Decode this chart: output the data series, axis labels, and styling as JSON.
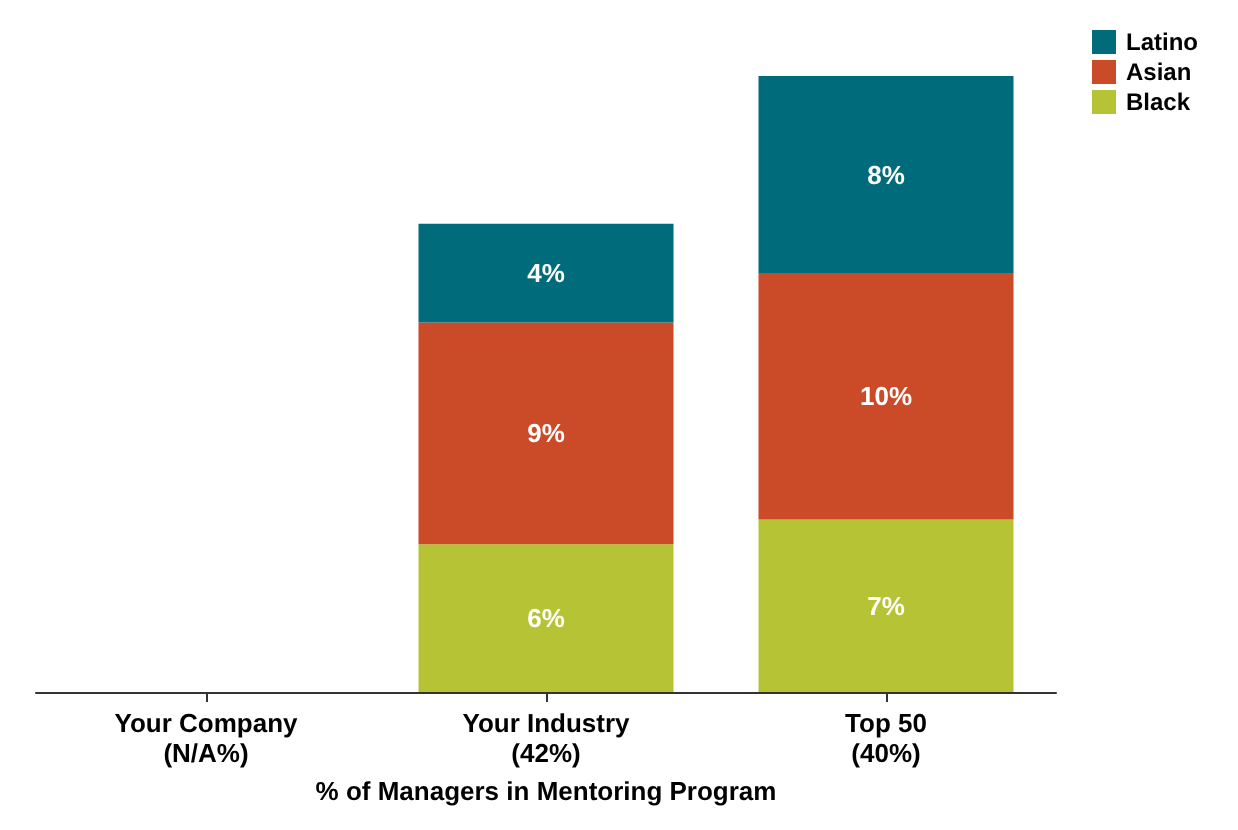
{
  "chart_data": {
    "type": "bar",
    "stacked": true,
    "legend": "top right",
    "grid": false,
    "xlabel": "% of Managers in Mentoring Program",
    "categories": [
      "Your Company\n(N/A%)",
      "Your Industry\n(42%)",
      "Top 50\n(40%)"
    ],
    "series": [
      {
        "name": "Black",
        "color": "#b5c334",
        "values": [
          null,
          6,
          7
        ],
        "value_labels": [
          null,
          "6%",
          "7%"
        ]
      },
      {
        "name": "Asian",
        "color": "#cb4b29",
        "values": [
          null,
          9,
          10
        ],
        "value_labels": [
          null,
          "9%",
          "10%"
        ]
      },
      {
        "name": "Latino",
        "color": "#006b7a",
        "values": [
          null,
          4,
          8
        ],
        "value_labels": [
          null,
          "4%",
          "8%"
        ]
      }
    ]
  }
}
